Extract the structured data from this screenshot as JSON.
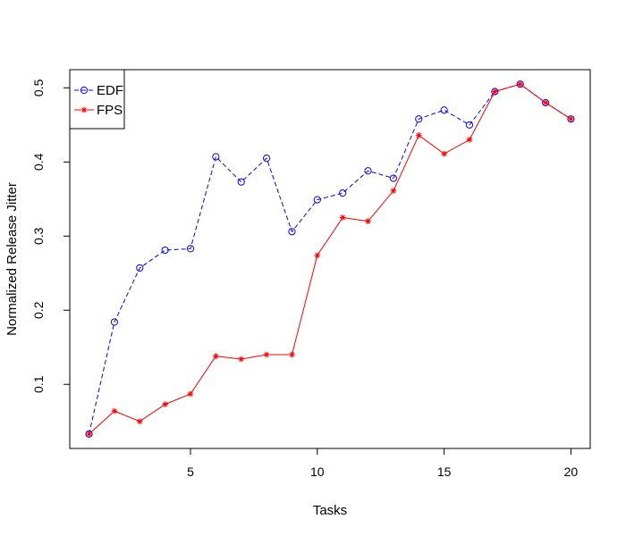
{
  "chart_data": {
    "type": "line",
    "xlabel": "Tasks",
    "ylabel": "Normalized Release Jitter",
    "xlim": [
      0.24,
      20.76
    ],
    "ylim": [
      0.0135,
      0.5245
    ],
    "x_ticks": [
      5,
      10,
      15,
      20
    ],
    "y_ticks": [
      0.1,
      0.2,
      0.3,
      0.4,
      0.5
    ],
    "x_tick_labels": [
      "5",
      "10",
      "15",
      "20"
    ],
    "y_tick_labels": [
      "0.1",
      "0.2",
      "0.3",
      "0.4",
      "0.5"
    ],
    "grid": false,
    "legend_position": "top-left",
    "x": [
      1,
      2,
      3,
      4,
      5,
      6,
      7,
      8,
      9,
      10,
      11,
      12,
      13,
      14,
      15,
      16,
      17,
      18,
      19,
      20
    ],
    "series": [
      {
        "name": "EDF",
        "color": "#0000ff",
        "line_style": "dashed",
        "marker": "circle",
        "values": [
          0.033,
          0.184,
          0.257,
          0.281,
          0.283,
          0.407,
          0.373,
          0.405,
          0.306,
          0.349,
          0.358,
          0.388,
          0.378,
          0.458,
          0.47,
          0.45,
          0.495,
          0.505,
          0.48,
          0.458
        ]
      },
      {
        "name": "FPS",
        "color": "#ff0000",
        "line_style": "solid",
        "marker": "star",
        "values": [
          0.033,
          0.064,
          0.05,
          0.073,
          0.087,
          0.138,
          0.134,
          0.14,
          0.14,
          0.274,
          0.325,
          0.32,
          0.361,
          0.436,
          0.411,
          0.43,
          0.495,
          0.505,
          0.48,
          0.458
        ]
      }
    ]
  }
}
